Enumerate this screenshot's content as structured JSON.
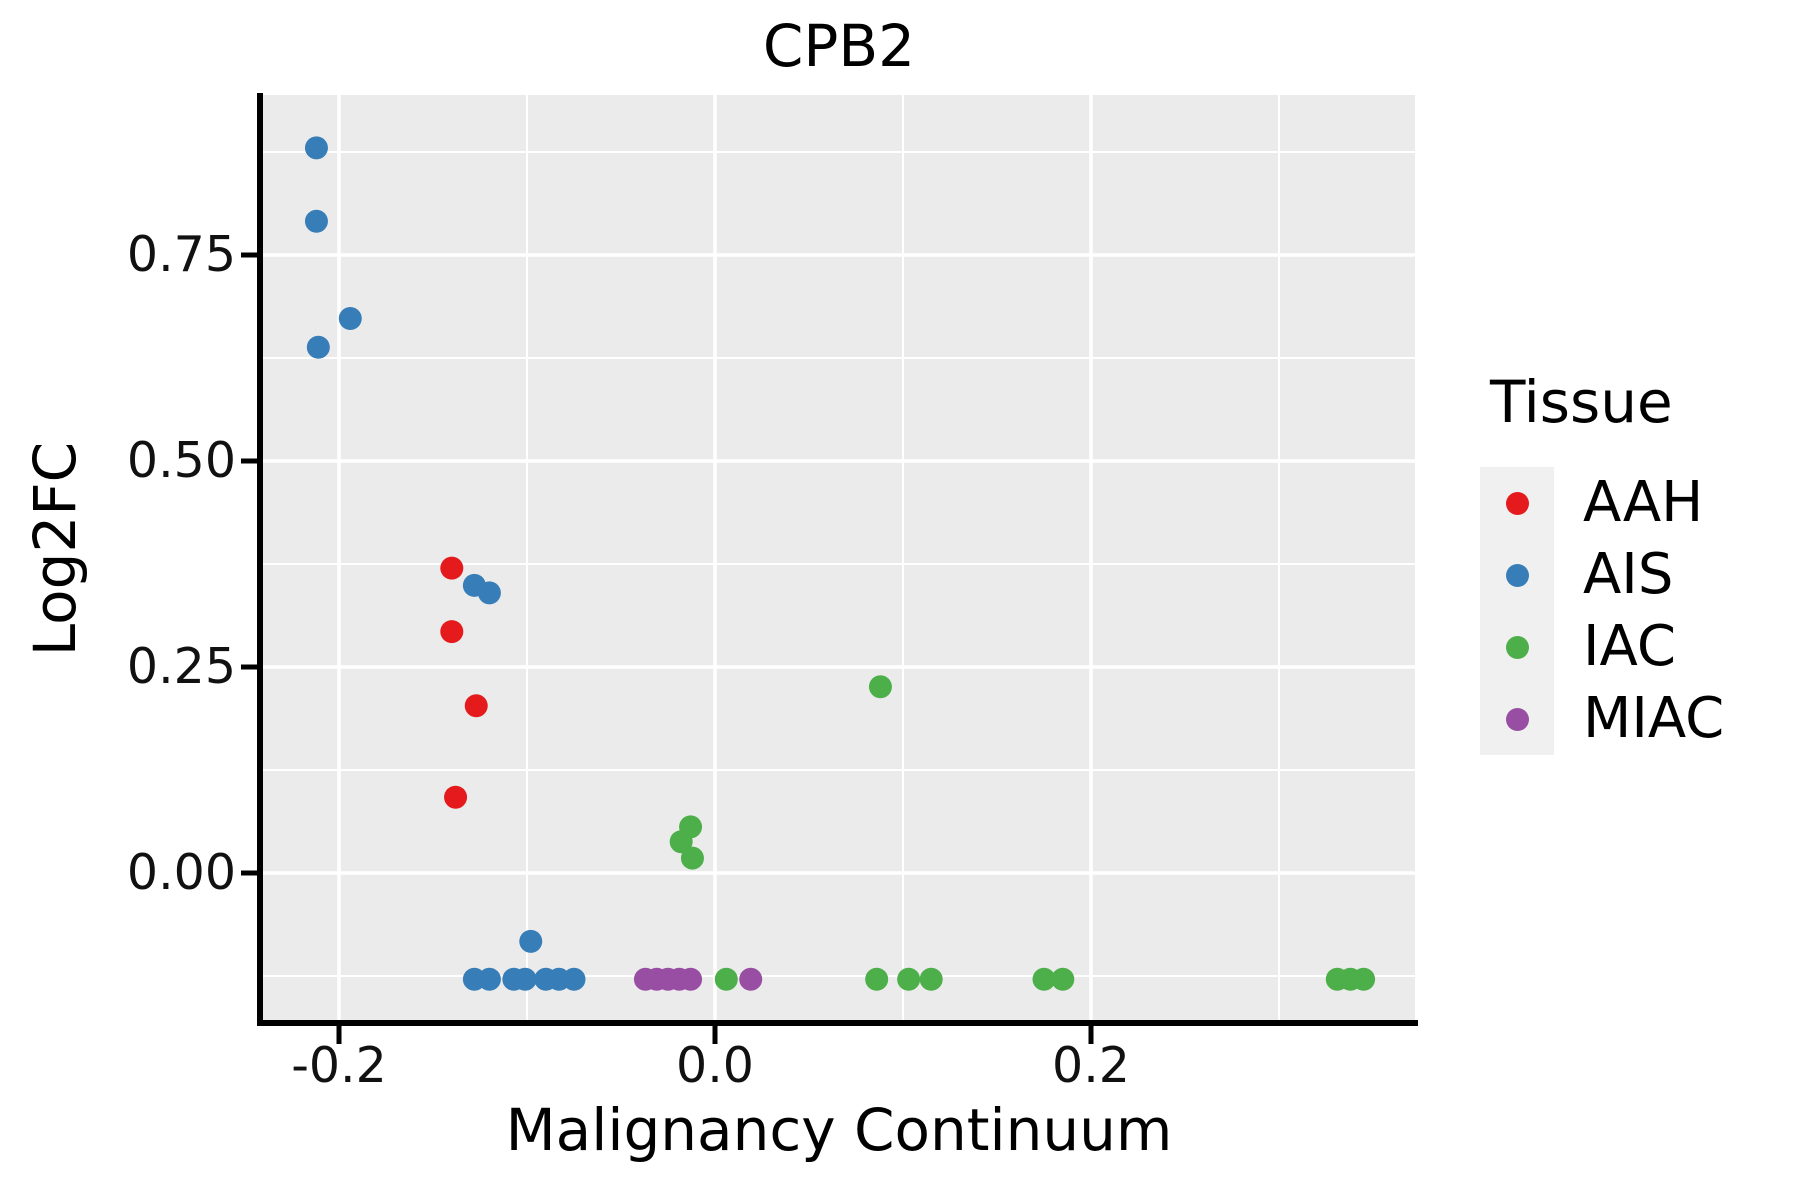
{
  "title": "CPB2",
  "panel": {
    "background_color": "#EBEBEB",
    "gridline_color": "#FFFFFF",
    "axis_color": "#000000"
  },
  "axes": {
    "x": {
      "label": "Malignancy Continuum",
      "ticks": [
        -0.2,
        0.0,
        0.2
      ],
      "tick_labels": [
        "-0.2",
        "0.0",
        "0.2"
      ],
      "range": [
        -0.24,
        0.372
      ],
      "major_step": 0.2
    },
    "y": {
      "label": "Log2FC",
      "ticks": [
        0.0,
        0.25,
        0.5,
        0.75
      ],
      "tick_labels": [
        "0.00",
        "0.25",
        "0.50",
        "0.75"
      ],
      "range": [
        -0.181,
        0.944
      ],
      "major_step": 0.25
    }
  },
  "legend": {
    "title": "Tissue",
    "items": [
      {
        "label": "AAH",
        "color": "#E41A1C"
      },
      {
        "label": "AIS",
        "color": "#377EB8"
      },
      {
        "label": "IAC",
        "color": "#4DAF4A"
      },
      {
        "label": "MIAC",
        "color": "#984EA3"
      }
    ]
  },
  "chart_data": {
    "type": "scatter",
    "title": "CPB2",
    "xlabel": "Malignancy Continuum",
    "ylabel": "Log2FC",
    "xlim": [
      -0.24,
      0.372
    ],
    "ylim": [
      -0.181,
      0.944
    ],
    "grid": "on",
    "legend_position": "right",
    "point_radius_px": 11.5,
    "series": [
      {
        "name": "AAH",
        "color": "#E41A1C",
        "points": [
          [
            -0.14,
            0.37
          ],
          [
            -0.14,
            0.293
          ],
          [
            -0.127,
            0.203
          ],
          [
            -0.138,
            0.092
          ]
        ]
      },
      {
        "name": "AIS",
        "color": "#377EB8",
        "points": [
          [
            -0.212,
            0.88
          ],
          [
            -0.212,
            0.791
          ],
          [
            -0.194,
            0.673
          ],
          [
            -0.211,
            0.638
          ],
          [
            -0.128,
            0.349
          ],
          [
            -0.12,
            0.34
          ],
          [
            -0.098,
            -0.083
          ],
          [
            -0.128,
            -0.129
          ],
          [
            -0.12,
            -0.129
          ],
          [
            -0.107,
            -0.129
          ],
          [
            -0.101,
            -0.129
          ],
          [
            -0.09,
            -0.129
          ],
          [
            -0.083,
            -0.129
          ],
          [
            -0.075,
            -0.129
          ]
        ]
      },
      {
        "name": "IAC",
        "color": "#4DAF4A",
        "points": [
          [
            -0.018,
            0.038
          ],
          [
            -0.013,
            0.056
          ],
          [
            -0.012,
            0.018
          ],
          [
            0.088,
            0.226
          ],
          [
            0.006,
            -0.129
          ],
          [
            0.086,
            -0.129
          ],
          [
            0.103,
            -0.129
          ],
          [
            0.115,
            -0.129
          ],
          [
            0.175,
            -0.129
          ],
          [
            0.185,
            -0.129
          ],
          [
            0.331,
            -0.129
          ],
          [
            0.338,
            -0.129
          ],
          [
            0.345,
            -0.129
          ]
        ]
      },
      {
        "name": "MIAC",
        "color": "#984EA3",
        "points": [
          [
            -0.037,
            -0.129
          ],
          [
            -0.031,
            -0.129
          ],
          [
            -0.025,
            -0.129
          ],
          [
            -0.019,
            -0.129
          ],
          [
            -0.013,
            -0.129
          ],
          [
            0.019,
            -0.129
          ]
        ]
      }
    ]
  }
}
